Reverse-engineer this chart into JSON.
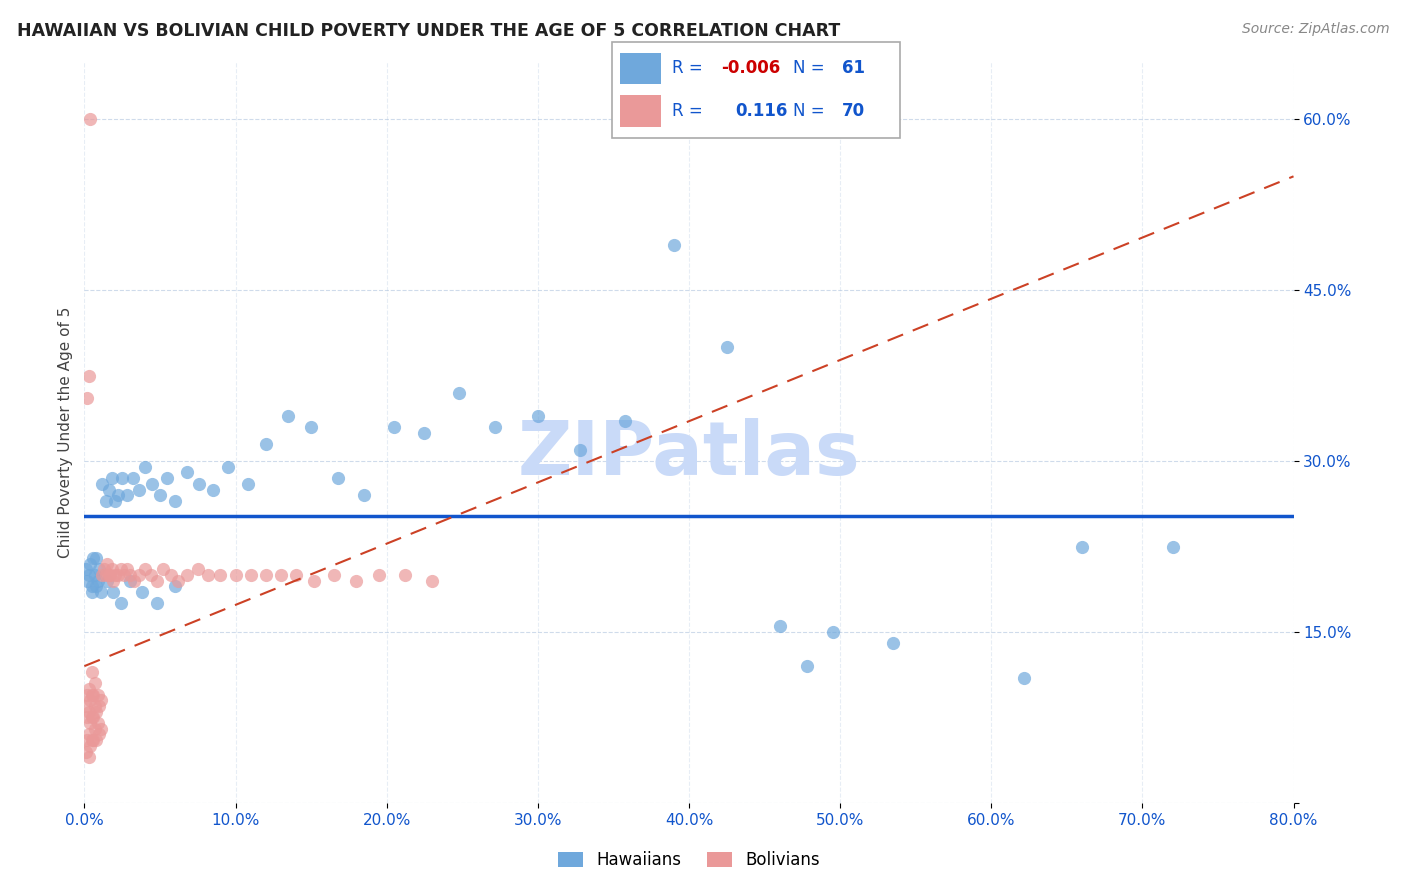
{
  "title": "HAWAIIAN VS BOLIVIAN CHILD POVERTY UNDER THE AGE OF 5 CORRELATION CHART",
  "source": "Source: ZipAtlas.com",
  "ylabel": "Child Poverty Under the Age of 5",
  "xlim": [
    0.0,
    0.8
  ],
  "ylim": [
    0.0,
    0.65
  ],
  "yticks": [
    0.0,
    0.15,
    0.3,
    0.45,
    0.6
  ],
  "xticks": [
    0.0,
    0.1,
    0.2,
    0.3,
    0.4,
    0.5,
    0.6,
    0.7,
    0.8
  ],
  "legend_label1": "Hawaiians",
  "legend_label2": "Bolivians",
  "R1": -0.006,
  "N1": 61,
  "R2": 0.116,
  "N2": 70,
  "color_hawaiian": "#6fa8dc",
  "color_bolivian": "#ea9999",
  "color_hawaiian_line": "#1155cc",
  "color_bolivian_line": "#cc4125",
  "watermark": "ZIPatlas",
  "watermark_color": "#c9daf8",
  "haw_x": [
    0.001,
    0.002,
    0.003,
    0.004,
    0.005,
    0.006,
    0.007,
    0.008,
    0.009,
    0.01,
    0.012,
    0.014,
    0.016,
    0.018,
    0.02,
    0.022,
    0.025,
    0.028,
    0.032,
    0.036,
    0.04,
    0.045,
    0.05,
    0.055,
    0.06,
    0.068,
    0.076,
    0.085,
    0.095,
    0.108,
    0.12,
    0.135,
    0.15,
    0.168,
    0.185,
    0.205,
    0.225,
    0.248,
    0.272,
    0.3,
    0.328,
    0.358,
    0.39,
    0.425,
    0.46,
    0.495,
    0.535,
    0.478,
    0.622,
    0.66,
    0.005,
    0.008,
    0.011,
    0.015,
    0.019,
    0.024,
    0.03,
    0.038,
    0.048,
    0.06,
    0.72
  ],
  "haw_y": [
    0.205,
    0.195,
    0.2,
    0.21,
    0.19,
    0.215,
    0.2,
    0.215,
    0.195,
    0.205,
    0.28,
    0.265,
    0.275,
    0.285,
    0.265,
    0.27,
    0.285,
    0.27,
    0.285,
    0.275,
    0.295,
    0.28,
    0.27,
    0.285,
    0.265,
    0.29,
    0.28,
    0.275,
    0.295,
    0.28,
    0.315,
    0.34,
    0.33,
    0.285,
    0.27,
    0.33,
    0.325,
    0.36,
    0.33,
    0.34,
    0.31,
    0.335,
    0.49,
    0.4,
    0.155,
    0.15,
    0.14,
    0.12,
    0.11,
    0.225,
    0.185,
    0.19,
    0.185,
    0.195,
    0.185,
    0.175,
    0.195,
    0.185,
    0.175,
    0.19,
    0.225
  ],
  "bol_x": [
    0.001,
    0.001,
    0.002,
    0.002,
    0.002,
    0.003,
    0.003,
    0.003,
    0.003,
    0.004,
    0.004,
    0.004,
    0.005,
    0.005,
    0.005,
    0.005,
    0.006,
    0.006,
    0.006,
    0.007,
    0.007,
    0.007,
    0.008,
    0.008,
    0.009,
    0.009,
    0.01,
    0.01,
    0.011,
    0.011,
    0.012,
    0.013,
    0.014,
    0.015,
    0.016,
    0.017,
    0.018,
    0.019,
    0.02,
    0.022,
    0.024,
    0.026,
    0.028,
    0.03,
    0.033,
    0.036,
    0.04,
    0.044,
    0.048,
    0.052,
    0.057,
    0.062,
    0.068,
    0.075,
    0.082,
    0.09,
    0.1,
    0.11,
    0.12,
    0.13,
    0.14,
    0.152,
    0.165,
    0.18,
    0.195,
    0.212,
    0.23,
    0.002,
    0.003,
    0.004
  ],
  "bol_y": [
    0.045,
    0.085,
    0.055,
    0.075,
    0.095,
    0.04,
    0.06,
    0.08,
    0.1,
    0.05,
    0.07,
    0.09,
    0.055,
    0.075,
    0.095,
    0.115,
    0.055,
    0.075,
    0.095,
    0.065,
    0.085,
    0.105,
    0.055,
    0.08,
    0.07,
    0.095,
    0.06,
    0.085,
    0.065,
    0.09,
    0.2,
    0.205,
    0.2,
    0.21,
    0.2,
    0.2,
    0.205,
    0.195,
    0.2,
    0.2,
    0.205,
    0.2,
    0.205,
    0.2,
    0.195,
    0.2,
    0.205,
    0.2,
    0.195,
    0.205,
    0.2,
    0.195,
    0.2,
    0.205,
    0.2,
    0.2,
    0.2,
    0.2,
    0.2,
    0.2,
    0.2,
    0.195,
    0.2,
    0.195,
    0.2,
    0.2,
    0.195,
    0.355,
    0.375,
    0.6
  ]
}
